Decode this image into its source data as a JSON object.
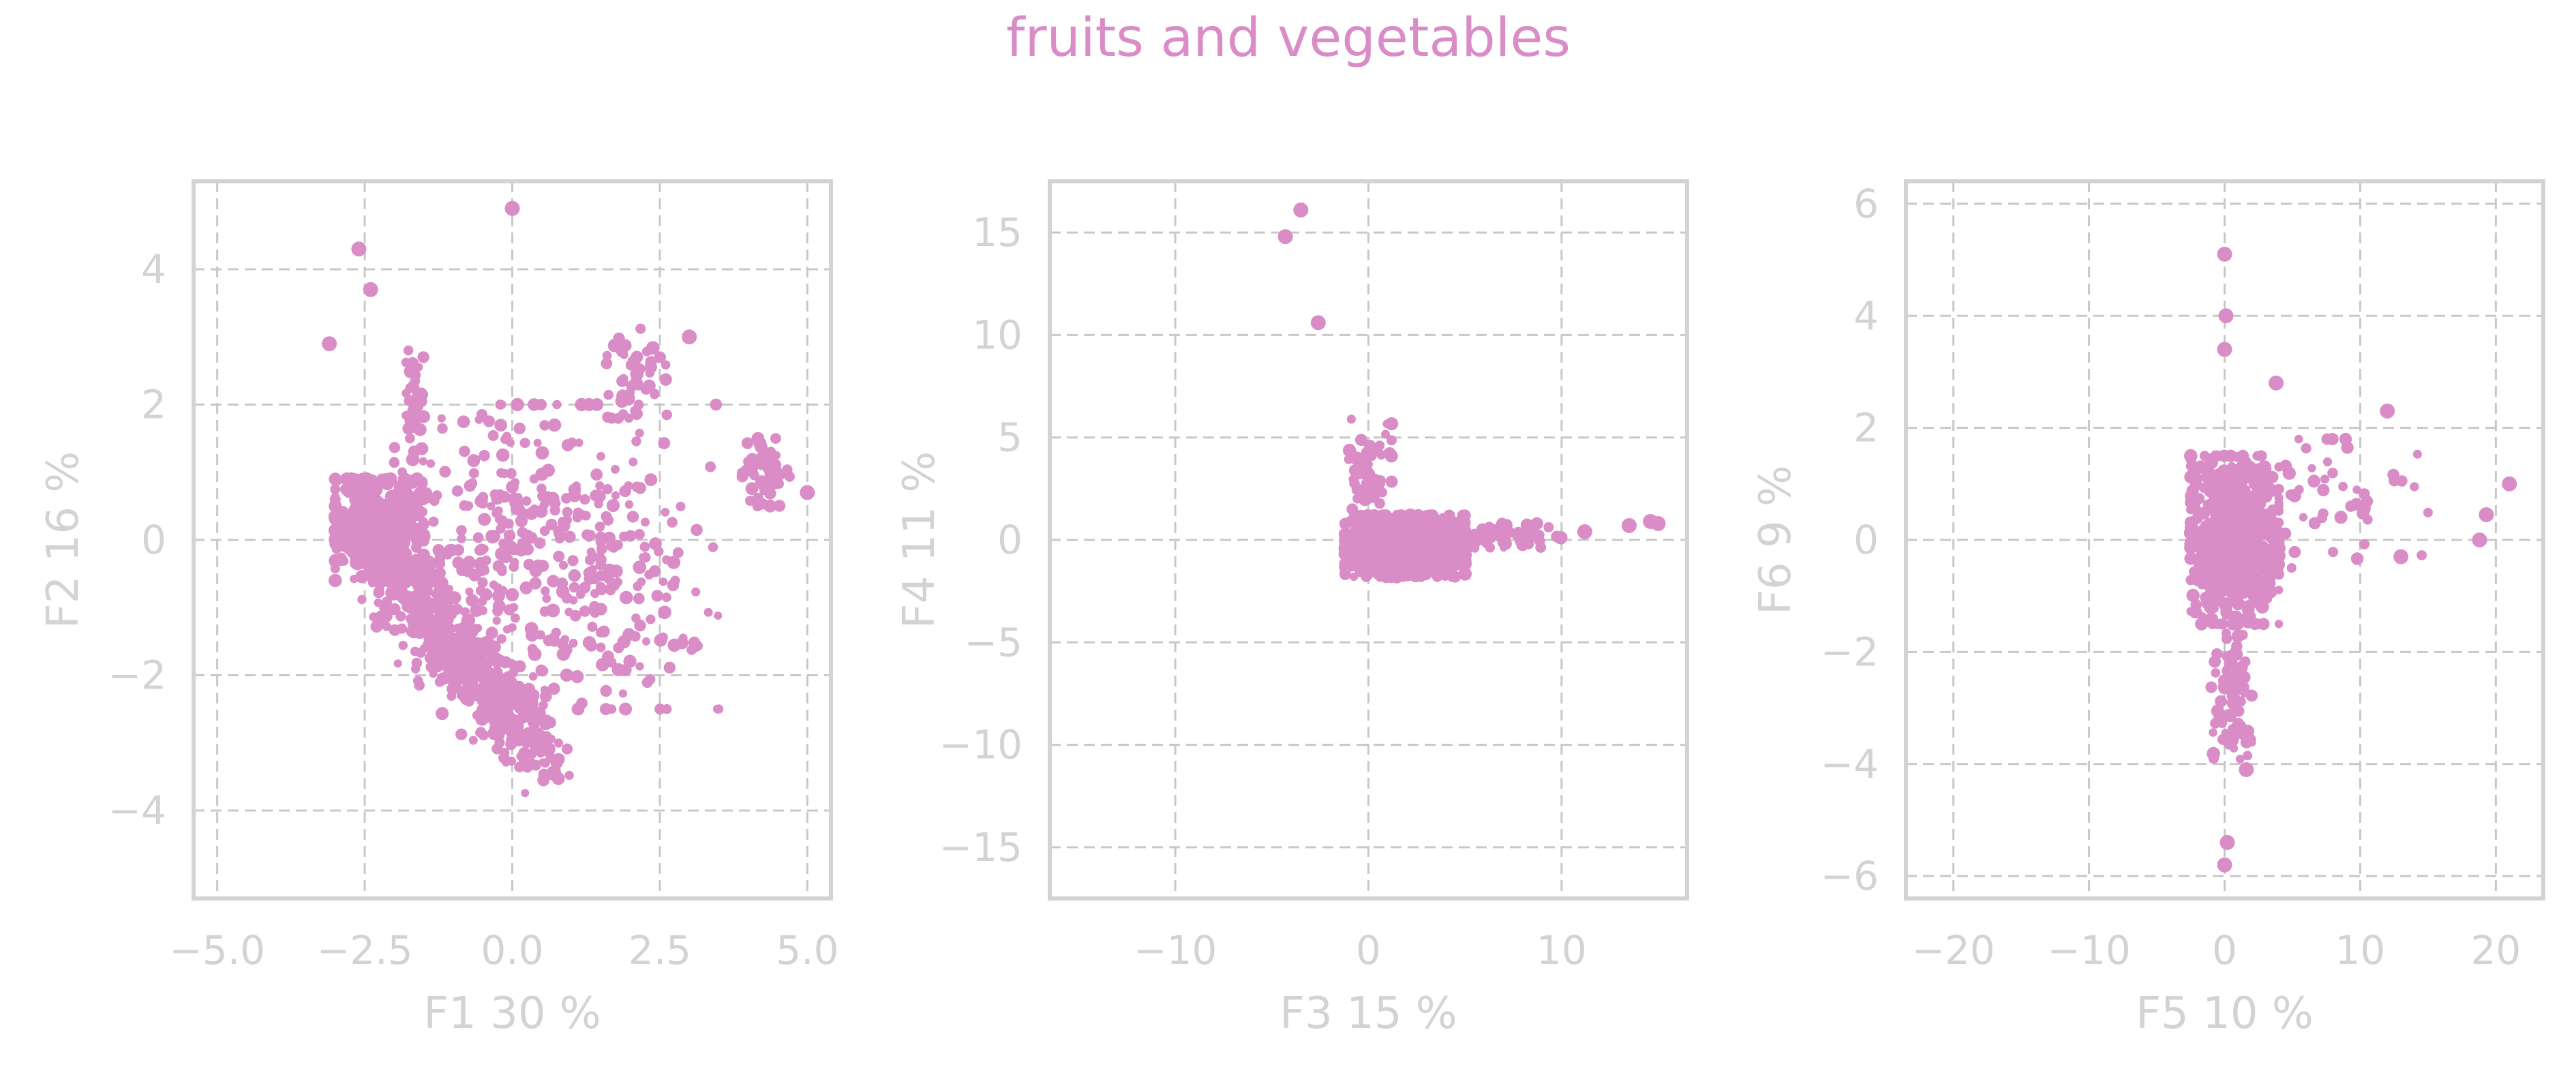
{
  "figure": {
    "title": "fruits and vegetables",
    "colors": {
      "points": "#d98cc6",
      "title": "#d98cc6",
      "axis_text": "#d3d3d3",
      "spine": "#d3d3d3",
      "grid": "#c8c8c8"
    }
  },
  "chart_data": [
    {
      "type": "scatter",
      "title": "",
      "xlabel": "F1 30 %",
      "ylabel": "F2 16 %",
      "xlim": [
        -5.4,
        5.4
      ],
      "ylim": [
        -5.3,
        5.3
      ],
      "xticks": [
        -5.0,
        -2.5,
        0.0,
        2.5,
        5.0
      ],
      "xtick_labels": [
        "−5.0",
        "−2.5",
        "0.0",
        "2.5",
        "5.0"
      ],
      "yticks": [
        -4,
        -2,
        0,
        2,
        4
      ],
      "ytick_labels": [
        "−4",
        "−2",
        "0",
        "2",
        "4"
      ],
      "grid": true,
      "outliers": [
        {
          "x": 0.0,
          "y": 4.9
        },
        {
          "x": -2.6,
          "y": 4.3
        },
        {
          "x": -2.4,
          "y": 3.7
        },
        {
          "x": -3.1,
          "y": 2.9
        },
        {
          "x": 3.0,
          "y": 3.0
        },
        {
          "x": 5.0,
          "y": 0.7
        },
        {
          "x": 0.7,
          "y": -3.45
        }
      ],
      "clusters": [
        {
          "x": [
            -3.0,
            -1.5
          ],
          "y": [
            -0.6,
            0.9
          ],
          "n": 500
        },
        {
          "x": [
            -2.2,
            0.6
          ],
          "y": [
            -3.2,
            -0.4
          ],
          "n": 500,
          "band": true
        },
        {
          "x": [
            -2.0,
            1.5
          ],
          "y": [
            -2.2,
            2.0
          ],
          "n": 260
        },
        {
          "x": [
            -1.8,
            -1.5
          ],
          "y": [
            1.5,
            2.8
          ],
          "n": 40
        },
        {
          "x": [
            1.5,
            2.6
          ],
          "y": [
            1.8,
            3.2
          ],
          "n": 40
        },
        {
          "x": [
            3.9,
            4.7
          ],
          "y": [
            0.5,
            1.5
          ],
          "n": 55
        },
        {
          "x": [
            0.0,
            3.5
          ],
          "y": [
            -2.5,
            2.0
          ],
          "n": 180
        }
      ]
    },
    {
      "type": "scatter",
      "title": "",
      "xlabel": "F3 15 %",
      "ylabel": "F4 11 %",
      "xlim": [
        -16.5,
        16.5
      ],
      "ylim": [
        -17.5,
        17.5
      ],
      "xticks": [
        -10,
        0,
        10
      ],
      "xtick_labels": [
        "−10",
        "0",
        "10"
      ],
      "yticks": [
        -15,
        -10,
        -5,
        0,
        5,
        10,
        15
      ],
      "ytick_labels": [
        "−15",
        "−10",
        "−5",
        "0",
        "5",
        "10",
        "15"
      ],
      "grid": true,
      "outliers": [
        {
          "x": -3.5,
          "y": 16.1
        },
        {
          "x": -4.3,
          "y": 14.8
        },
        {
          "x": -2.6,
          "y": 10.6
        },
        {
          "x": 11.2,
          "y": 0.4
        },
        {
          "x": 13.5,
          "y": 0.7
        },
        {
          "x": 14.6,
          "y": 0.9
        },
        {
          "x": 15.0,
          "y": 0.8
        }
      ],
      "clusters": [
        {
          "x": [
            -1.2,
            5.0
          ],
          "y": [
            -1.8,
            1.2
          ],
          "n": 900
        },
        {
          "x": [
            -1.2,
            1.2
          ],
          "y": [
            0.8,
            6.0
          ],
          "n": 60
        },
        {
          "x": [
            5.0,
            10.0
          ],
          "y": [
            -0.4,
            0.8
          ],
          "n": 70
        }
      ]
    },
    {
      "type": "scatter",
      "title": "",
      "xlabel": "F5 10 %",
      "ylabel": "F6 9 %",
      "xlim": [
        -23.5,
        23.5
      ],
      "ylim": [
        -6.4,
        6.4
      ],
      "xticks": [
        -20,
        -10,
        0,
        10,
        20
      ],
      "xtick_labels": [
        "−20",
        "−10",
        "0",
        "10",
        "20"
      ],
      "yticks": [
        -6,
        -4,
        -2,
        0,
        2,
        4,
        6
      ],
      "ytick_labels": [
        "−6",
        "−4",
        "−2",
        "0",
        "2",
        "4",
        "6"
      ],
      "grid": true,
      "outliers": [
        {
          "x": 0.0,
          "y": 5.1
        },
        {
          "x": 0.1,
          "y": 4.0
        },
        {
          "x": 0.0,
          "y": 3.4
        },
        {
          "x": 3.8,
          "y": 2.8
        },
        {
          "x": 12.0,
          "y": 2.3
        },
        {
          "x": 21.0,
          "y": 1.0
        },
        {
          "x": 19.3,
          "y": 0.45
        },
        {
          "x": 18.8,
          "y": 0.0
        },
        {
          "x": 13.0,
          "y": -0.3
        },
        {
          "x": 0.2,
          "y": -5.4
        },
        {
          "x": 0.0,
          "y": -5.8
        },
        {
          "x": 1.6,
          "y": -4.1
        }
      ],
      "clusters": [
        {
          "x": [
            -2.5,
            4.0
          ],
          "y": [
            -1.5,
            1.5
          ],
          "n": 750
        },
        {
          "x": [
            -1.0,
            2.0
          ],
          "y": [
            -4.0,
            -1.5
          ],
          "n": 80
        },
        {
          "x": [
            3.0,
            15.0
          ],
          "y": [
            -0.5,
            1.8
          ],
          "n": 45
        }
      ]
    }
  ]
}
